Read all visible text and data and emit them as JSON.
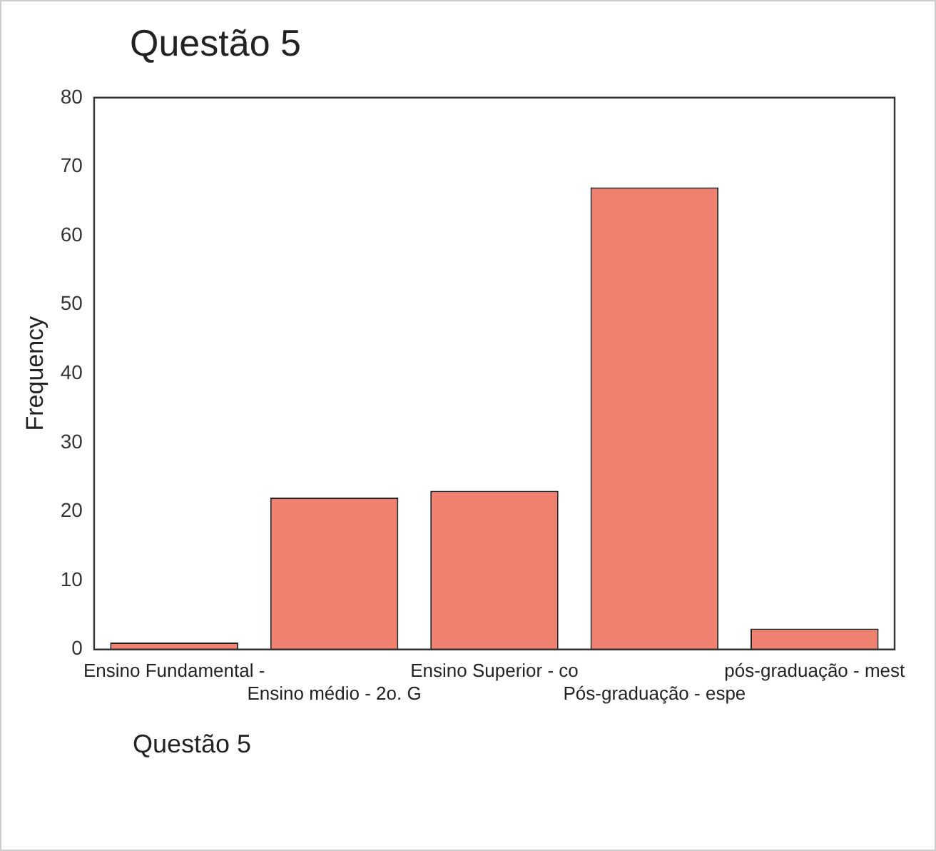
{
  "chart_data": {
    "type": "bar",
    "title": "Questão 5",
    "ylabel": "Frequency",
    "categories": [
      "Ensino Fundamental -",
      "Ensino médio - 2o. G",
      "Ensino Superior - co",
      "Pós-graduação - espe",
      "pós-graduação - mest"
    ],
    "values": [
      1,
      22,
      23,
      67,
      3
    ],
    "color": "#f08070",
    "ylim": [
      0,
      80
    ],
    "yticks": [
      0,
      10,
      20,
      30,
      40,
      50,
      60,
      70,
      80
    ],
    "grid": false,
    "legend": false,
    "annotations": [
      "Questão 5"
    ]
  }
}
